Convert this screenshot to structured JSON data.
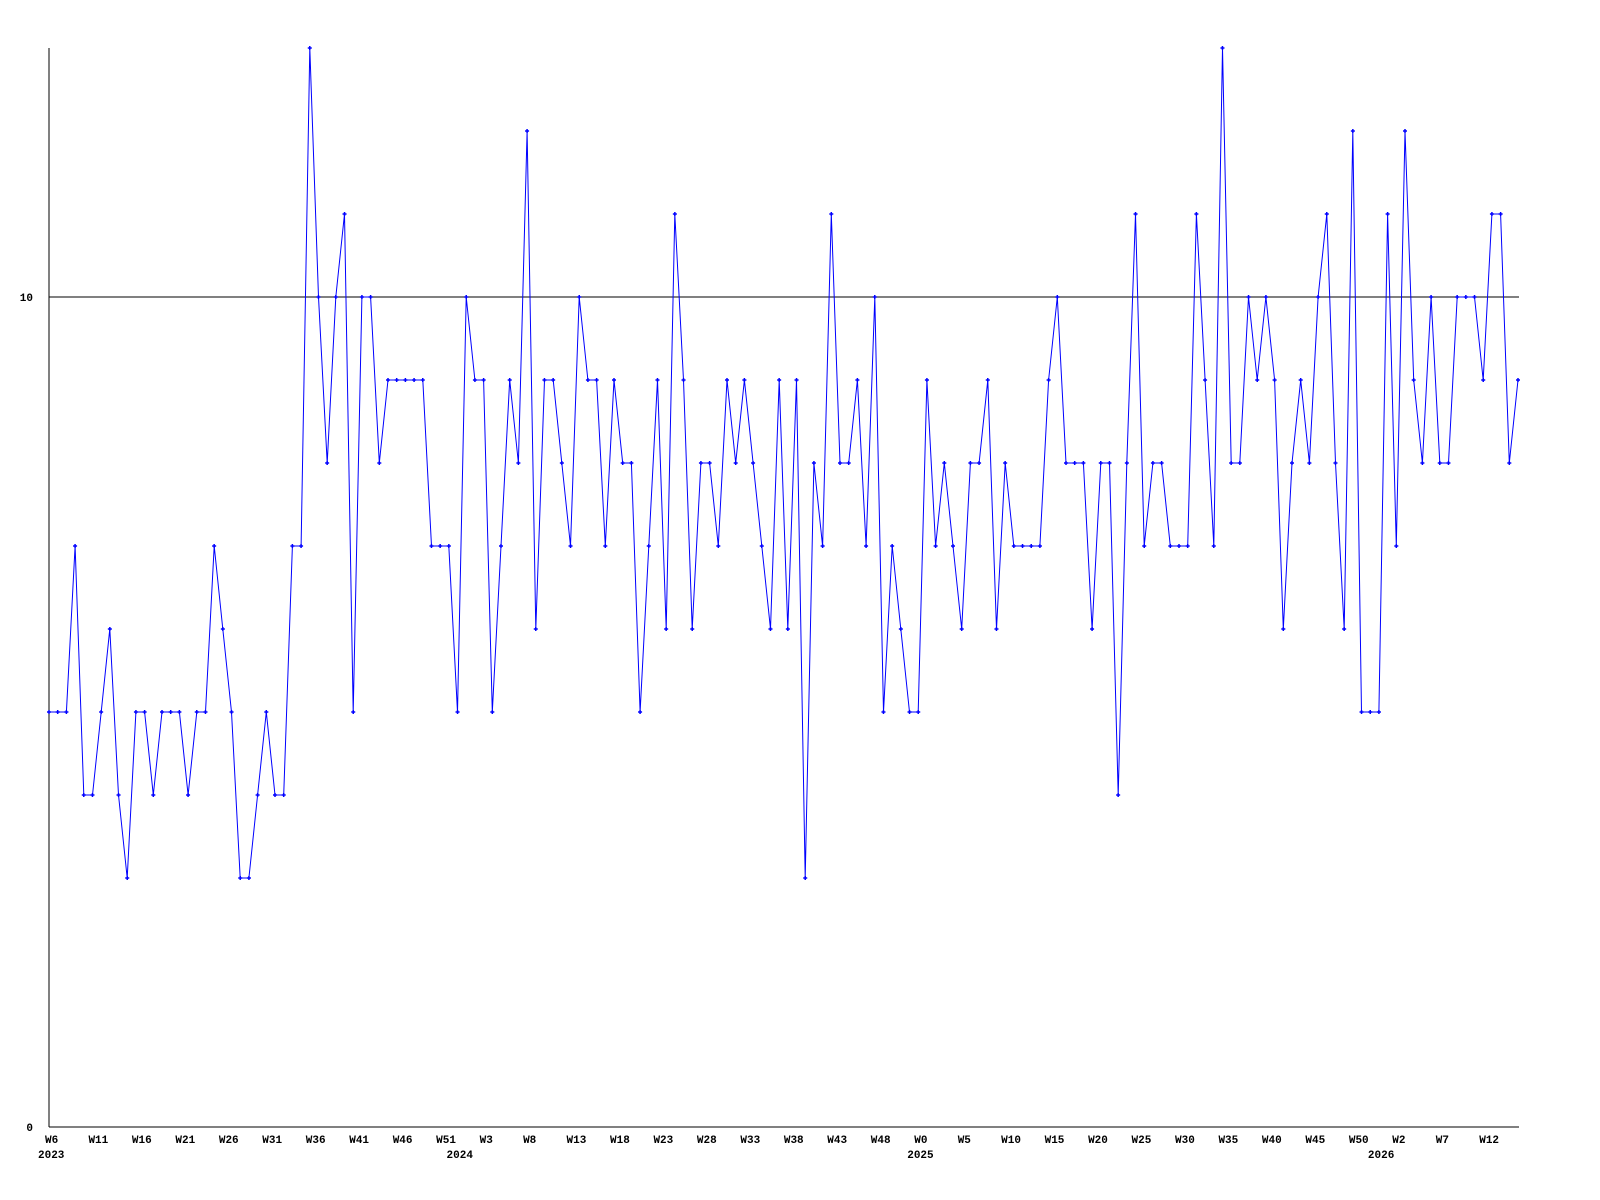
{
  "chart_data": {
    "type": "line",
    "title": "",
    "xlabel": "",
    "ylabel": "",
    "ylim": [
      0,
      13
    ],
    "y_tick_labels": [
      "0",
      "10"
    ],
    "reference_line": 10,
    "grid": false,
    "line_color": "#0000ff",
    "axis_color": "#000000",
    "x_tick_labels": [
      "W6",
      "W11",
      "W16",
      "W21",
      "W26",
      "W31",
      "W36",
      "W41",
      "W46",
      "W51",
      "W3",
      "W8",
      "W13",
      "W18",
      "W23",
      "W28",
      "W33",
      "W38",
      "W43",
      "W48",
      "W0",
      "W5",
      "W10",
      "W15",
      "W20",
      "W25",
      "W30",
      "W35",
      "W40",
      "W45",
      "W50",
      "W2",
      "W7",
      "W12"
    ],
    "year_labels": [
      "2023",
      "2024",
      "2025",
      "2026"
    ],
    "values": [
      5,
      5,
      5,
      7,
      4,
      4,
      5,
      6,
      4,
      3,
      5,
      5,
      4,
      5,
      5,
      5,
      4,
      5,
      5,
      7,
      6,
      5,
      3,
      3,
      4,
      5,
      4,
      4,
      7,
      7,
      13,
      10,
      8,
      10,
      11,
      5,
      10,
      10,
      8,
      9,
      9,
      9,
      9,
      9,
      7,
      7,
      7,
      5,
      10,
      9,
      9,
      5,
      7,
      9,
      8,
      12,
      6,
      9,
      9,
      8,
      7,
      10,
      9,
      9,
      7,
      9,
      8,
      8,
      5,
      7,
      9,
      6,
      11,
      9,
      6,
      8,
      8,
      7,
      9,
      8,
      9,
      8,
      7,
      6,
      9,
      6,
      9,
      3,
      8,
      7,
      11,
      8,
      8,
      9,
      7,
      10,
      5,
      7,
      6,
      5,
      5,
      9,
      7,
      8,
      7,
      6,
      8,
      8,
      9,
      6,
      8,
      7,
      7,
      7,
      7,
      9,
      10,
      8,
      8,
      8,
      6,
      8,
      8,
      4,
      8,
      11,
      7,
      8,
      8,
      7,
      7,
      7,
      11,
      9,
      7,
      13,
      8,
      8,
      10,
      9,
      10,
      9,
      6,
      8,
      9,
      8,
      10,
      11,
      8,
      6,
      12,
      5,
      5,
      5,
      11,
      7,
      12,
      9,
      8,
      10,
      8,
      8,
      10,
      10,
      10,
      9,
      11,
      11,
      8,
      9
    ]
  }
}
